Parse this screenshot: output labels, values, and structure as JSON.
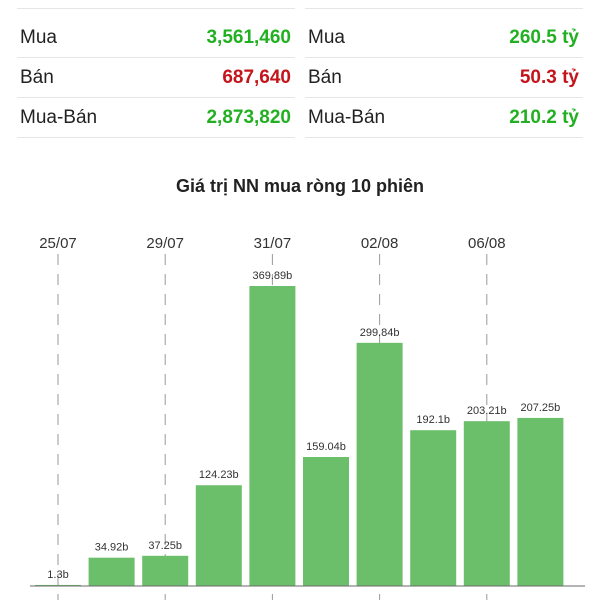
{
  "volume_panel": {
    "rows": [
      {
        "label": "Mua",
        "value": "3,561,460",
        "color": "green"
      },
      {
        "label": "Bán",
        "value": "687,640",
        "color": "red"
      },
      {
        "label": "Mua-Bán",
        "value": "2,873,820",
        "color": "green"
      }
    ]
  },
  "value_panel": {
    "rows": [
      {
        "label": "Mua",
        "value": "260.5 tỷ",
        "color": "green"
      },
      {
        "label": "Bán",
        "value": "50.3 tỷ",
        "color": "red"
      },
      {
        "label": "Mua-Bán",
        "value": "210.2 tỷ",
        "color": "green"
      }
    ]
  },
  "colors": {
    "positive": "#22b022",
    "negative": "#c4151c",
    "bar": "#6cbf6a"
  },
  "chart_data": {
    "type": "bar",
    "title": "Giá trị NN mua ròng 10 phiên",
    "x_tick_labels": [
      "25/07",
      "29/07",
      "31/07",
      "02/08",
      "06/08"
    ],
    "x_tick_bar_index": [
      0,
      2,
      4,
      6,
      8
    ],
    "values": [
      1.3,
      34.92,
      37.25,
      124.23,
      369.89,
      159.04,
      299.84,
      192.1,
      203.21,
      207.25
    ],
    "data_labels": [
      "1.3b",
      "34.92b",
      "37.25b",
      "124.23b",
      "369.89b",
      "159.04b",
      "299.84b",
      "192.1b",
      "203.21b",
      "207.25b"
    ],
    "ylim": [
      0,
      369.89
    ],
    "grid": "vertical dashed at ticks"
  }
}
